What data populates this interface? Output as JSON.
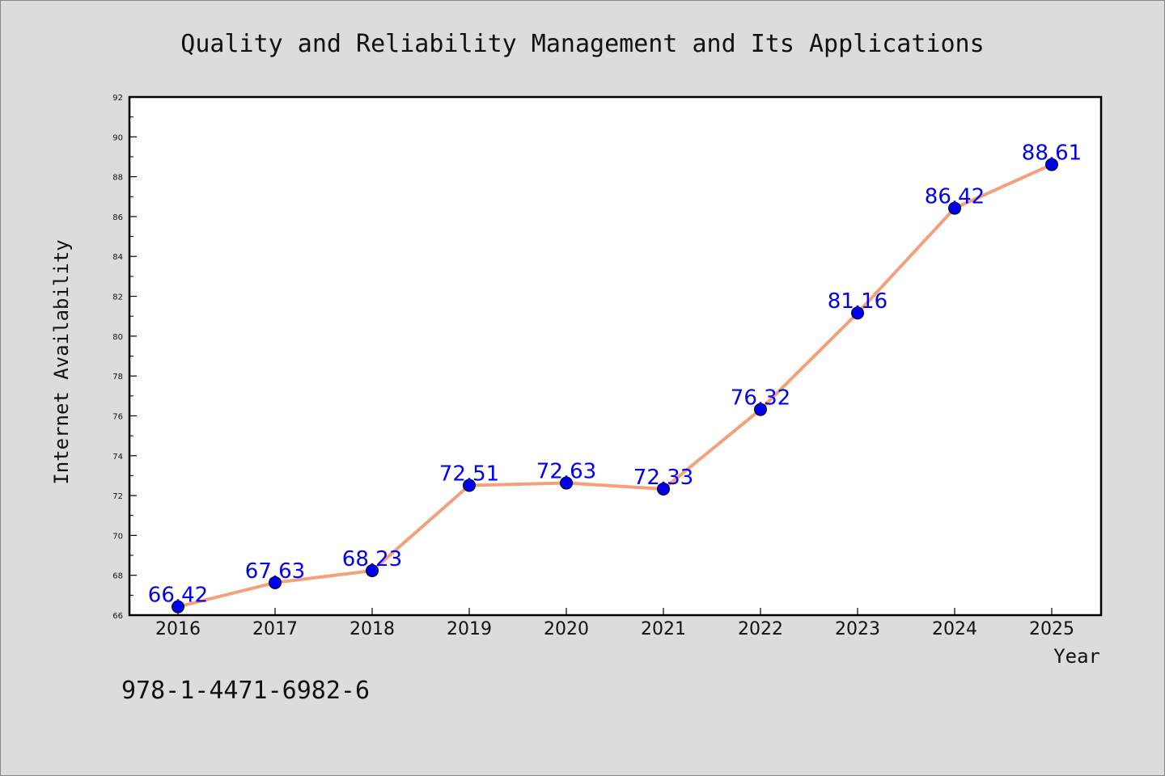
{
  "chart_data": {
    "type": "line",
    "title": "Quality and Reliability Management and Its Applications",
    "xlabel": "Year",
    "ylabel": "Internet Availability",
    "x": [
      "2016",
      "2017",
      "2018",
      "2019",
      "2020",
      "2021",
      "2022",
      "2023",
      "2024",
      "2025"
    ],
    "y_ticks": [
      66,
      68,
      70,
      72,
      74,
      76,
      78,
      80,
      82,
      84,
      86,
      88,
      90,
      92
    ],
    "ylim": [
      66,
      92
    ],
    "grid": false,
    "series": [
      {
        "values": [
          66.42,
          67.63,
          68.23,
          72.51,
          72.63,
          72.33,
          76.32,
          81.16,
          86.42,
          88.61
        ],
        "labels": [
          "66.42",
          "67.63",
          "68.23",
          "72.51",
          "72.63",
          "72.33",
          "76.32",
          "81.16",
          "86.42",
          "88.61"
        ],
        "line_color": "#f4a07a",
        "marker_color": "#0000ee"
      }
    ]
  },
  "footer": {
    "isbn": "978-1-4471-6982-6"
  },
  "colors": {
    "background": "#dcdcdc",
    "plot_background": "#ffffff",
    "text": "#111111"
  }
}
